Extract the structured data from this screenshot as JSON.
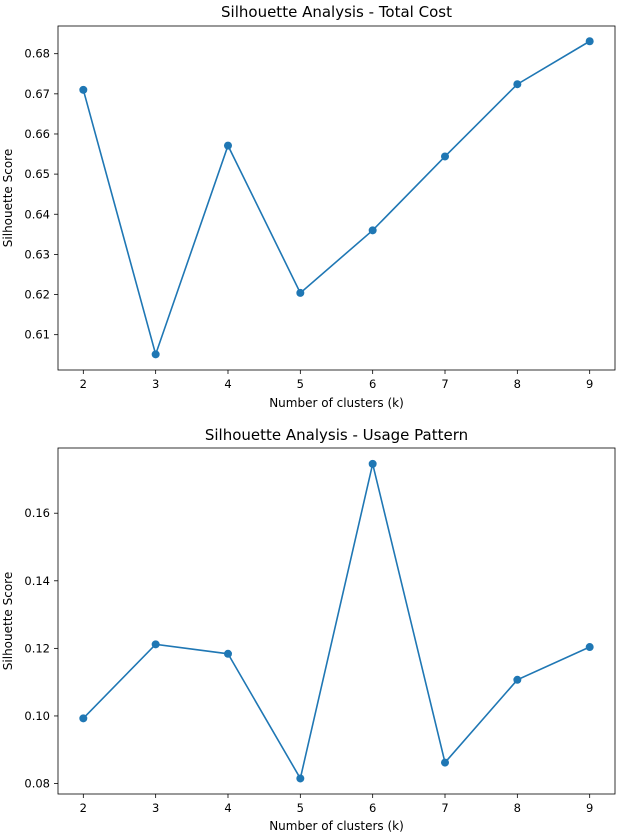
{
  "chart_data": [
    {
      "type": "line",
      "title": "Silhouette Analysis - Total Cost",
      "xlabel": "Number of clusters (k)",
      "ylabel": "Silhouette Score",
      "x": [
        2,
        3,
        4,
        5,
        6,
        7,
        8,
        9
      ],
      "values": [
        0.671,
        0.6051,
        0.6571,
        0.6204,
        0.636,
        0.6544,
        0.6724,
        0.6831
      ],
      "xticks": [
        "2",
        "3",
        "4",
        "5",
        "6",
        "7",
        "8",
        "9"
      ],
      "yticks": [
        "0.61",
        "0.62",
        "0.63",
        "0.64",
        "0.65",
        "0.66",
        "0.67",
        "0.68"
      ],
      "ytick_values": [
        0.61,
        0.62,
        0.63,
        0.64,
        0.65,
        0.66,
        0.67,
        0.68
      ],
      "xlim": [
        1.65,
        9.35
      ],
      "ylim": [
        0.6012,
        0.6869
      ],
      "color": "#1f77b4",
      "marker": "circle",
      "grid": false
    },
    {
      "type": "line",
      "title": "Silhouette Analysis - Usage Pattern",
      "xlabel": "Number of clusters (k)",
      "ylabel": "Silhouette Score",
      "x": [
        2,
        3,
        4,
        5,
        6,
        7,
        8,
        9
      ],
      "values": [
        0.0993,
        0.1212,
        0.1184,
        0.0815,
        0.1746,
        0.0862,
        0.1107,
        0.1204
      ],
      "xticks": [
        "2",
        "3",
        "4",
        "5",
        "6",
        "7",
        "8",
        "9"
      ],
      "yticks": [
        "0.08",
        "0.10",
        "0.12",
        "0.14",
        "0.16"
      ],
      "ytick_values": [
        0.08,
        0.1,
        0.12,
        0.14,
        0.16
      ],
      "xlim": [
        1.65,
        9.35
      ],
      "ylim": [
        0.0769,
        0.1793
      ],
      "color": "#1f77b4",
      "marker": "circle",
      "grid": false
    }
  ]
}
